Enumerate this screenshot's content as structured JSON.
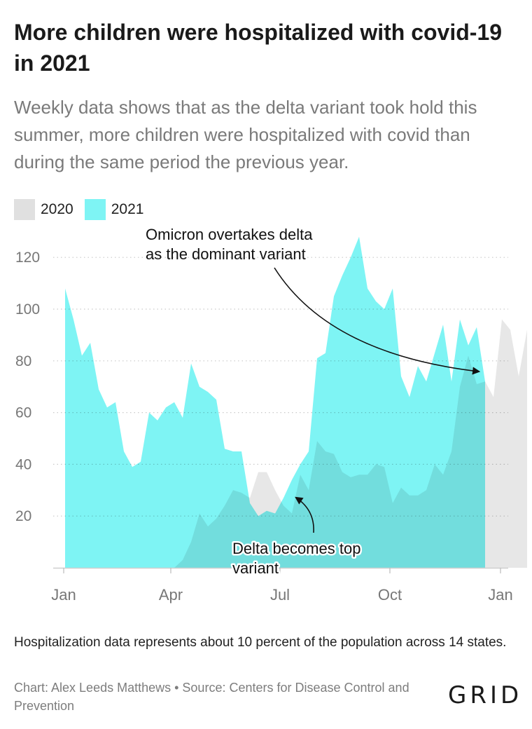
{
  "header": {
    "title": "More children were hospitalized with covid-19 in 2021",
    "subtitle": "Weekly data shows that as the delta variant took hold this summer, more children were hospitalized with covid than during the same period the previous year."
  },
  "legend": [
    {
      "label": "2020",
      "color": "#e0e0e0"
    },
    {
      "label": "2021",
      "color": "#7ef4f4"
    }
  ],
  "chart_data": {
    "type": "area",
    "x_unit": "week",
    "x_tick_labels": [
      "Jan",
      "Apr",
      "Jul",
      "Oct",
      "Jan"
    ],
    "y_ticks": [
      20,
      40,
      60,
      80,
      100,
      120
    ],
    "ylim": [
      0,
      130
    ],
    "grid": "horizontal-dotted",
    "legend_placement": "top-left",
    "series": [
      {
        "name": "2020",
        "color": "#e0e0e0",
        "values": [
          0,
          0,
          0,
          0,
          0,
          0,
          0,
          0,
          0,
          0,
          0,
          0,
          0,
          0,
          3,
          10,
          21,
          16,
          19,
          24,
          30,
          29,
          27,
          37,
          37,
          30,
          24,
          21,
          36,
          30,
          49,
          45,
          44,
          37,
          35,
          36,
          36,
          40,
          39,
          25,
          31,
          28,
          28,
          30,
          40,
          36,
          45,
          70,
          82,
          71,
          72,
          66,
          96,
          92,
          74,
          92
        ]
      },
      {
        "name": "2021",
        "color": "#7ef4f4",
        "values": [
          108,
          96,
          82,
          87,
          69,
          62,
          64,
          45,
          39,
          41,
          60,
          57,
          62,
          64,
          58,
          79,
          70,
          68,
          65,
          46,
          45,
          45,
          25,
          20,
          22,
          21,
          27,
          34,
          40,
          45,
          81,
          83,
          105,
          113,
          120,
          128,
          108,
          103,
          100,
          108,
          74,
          66,
          78,
          72,
          83,
          94,
          72,
          96,
          86,
          93,
          72
        ]
      }
    ],
    "annotations": [
      {
        "id": "omicron",
        "text_lines": [
          "Omicron overtakes delta",
          "as the dominant variant"
        ]
      },
      {
        "id": "delta",
        "text_lines": [
          "Delta becomes top",
          "variant"
        ]
      }
    ]
  },
  "footer": {
    "note": "Hospitalization data represents about 10 percent of the population across 14 states.",
    "credit": "Chart: Alex Leeds Matthews • Source: Centers for Disease Control and Prevention",
    "logo": "GRID"
  }
}
